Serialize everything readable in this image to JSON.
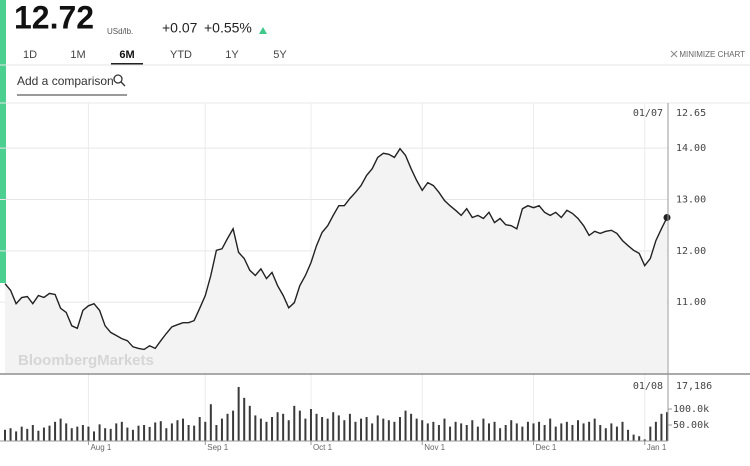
{
  "header": {
    "price": "12.72",
    "unit": "USd/lb.",
    "change": "+0.07",
    "change_pct": "+0.55%"
  },
  "tabs": [
    "1D",
    "1M",
    "6M",
    "YTD",
    "1Y",
    "5Y"
  ],
  "active_tab": 2,
  "minimize": "MINIMIZE CHART",
  "comparison_placeholder": "Add a comparison",
  "watermark": "BloombergMarkets",
  "chart_data": [
    {
      "type": "line",
      "series": [
        {
          "name": "Price",
          "color": "#222222",
          "fill": "#f3f3f3",
          "values": [
            11.36,
            11.23,
            10.97,
            11.09,
            11.11,
            10.97,
            11.13,
            11.09,
            11.17,
            11.15,
            10.88,
            10.8,
            10.54,
            10.49,
            10.84,
            10.93,
            10.97,
            10.84,
            10.54,
            10.41,
            10.35,
            10.29,
            10.25,
            10.13,
            10.1,
            10.08,
            10.15,
            10.1,
            10.25,
            10.39,
            10.52,
            10.56,
            10.6,
            10.6,
            10.64,
            10.88,
            11.13,
            11.52,
            12.01,
            12.04,
            12.24,
            12.43,
            11.97,
            11.85,
            11.62,
            11.52,
            11.65,
            11.46,
            11.58,
            11.32,
            11.13,
            10.89,
            10.99,
            11.32,
            11.52,
            11.77,
            12.1,
            12.36,
            12.49,
            12.69,
            12.88,
            12.88,
            13.02,
            13.14,
            13.27,
            13.47,
            13.6,
            13.82,
            13.9,
            13.88,
            13.82,
            13.99,
            13.86,
            13.6,
            13.37,
            13.18,
            13.33,
            13.27,
            13.14,
            12.98,
            12.88,
            12.79,
            12.69,
            12.82,
            12.65,
            12.69,
            12.63,
            12.75,
            12.55,
            12.63,
            12.51,
            12.49,
            12.43,
            12.82,
            12.88,
            12.84,
            12.88,
            12.75,
            12.69,
            12.75,
            12.65,
            12.79,
            12.73,
            12.63,
            12.49,
            12.3,
            12.38,
            12.34,
            12.38,
            12.4,
            12.34,
            12.2,
            12.1,
            12.01,
            11.95,
            11.71,
            11.85,
            12.2,
            12.43,
            12.65
          ]
        }
      ],
      "ylim": [
        9.62,
        14.88
      ],
      "yticks": [
        {
          "value": 11,
          "label": "11.00"
        },
        {
          "value": 12,
          "label": "12.00"
        },
        {
          "value": 13,
          "label": "13.00"
        },
        {
          "value": 14,
          "label": "14.00"
        }
      ],
      "grid": true,
      "crosshair": {
        "date": "01/07",
        "value": 12.65
      }
    },
    {
      "type": "bar",
      "categories": [
        null,
        null,
        null,
        null,
        null,
        null,
        null,
        null,
        null,
        null,
        null,
        null,
        null,
        null,
        null,
        "Aug 1",
        null,
        null,
        null,
        null,
        null,
        null,
        null,
        null,
        null,
        null,
        null,
        null,
        null,
        null,
        null,
        null,
        null,
        null,
        null,
        null,
        "Sep 1",
        null,
        null,
        null,
        null,
        null,
        null,
        null,
        null,
        null,
        null,
        null,
        null,
        null,
        null,
        null,
        null,
        null,
        null,
        "Oct 1",
        null,
        null,
        null,
        null,
        null,
        null,
        null,
        null,
        null,
        null,
        null,
        null,
        null,
        null,
        null,
        null,
        null,
        null,
        null,
        "Nov 1",
        null,
        null,
        null,
        null,
        null,
        null,
        null,
        null,
        null,
        null,
        null,
        null,
        null,
        null,
        null,
        null,
        null,
        null,
        null,
        "Dec 1",
        null,
        null,
        null,
        null,
        null,
        null,
        null,
        null,
        null,
        null,
        null,
        null,
        null,
        null,
        null,
        null,
        null,
        null,
        null,
        "Jan 1",
        null,
        null,
        null,
        null
      ],
      "values": [
        35000,
        40000,
        30000,
        45000,
        38000,
        50000,
        32000,
        42000,
        48000,
        60000,
        70000,
        55000,
        40000,
        45000,
        50000,
        45000,
        30000,
        52000,
        40000,
        38000,
        55000,
        60000,
        42000,
        35000,
        48000,
        50000,
        44000,
        58000,
        62000,
        40000,
        55000,
        65000,
        70000,
        50000,
        48000,
        75000,
        60000,
        115000,
        50000,
        70000,
        85000,
        95000,
        169000,
        135000,
        110000,
        80000,
        70000,
        60000,
        75000,
        90000,
        85000,
        65000,
        110000,
        95000,
        70000,
        100000,
        85000,
        75000,
        70000,
        90000,
        80000,
        65000,
        85000,
        60000,
        70000,
        75000,
        55000,
        80000,
        70000,
        65000,
        60000,
        75000,
        95000,
        85000,
        70000,
        65000,
        55000,
        60000,
        50000,
        70000,
        45000,
        60000,
        55000,
        50000,
        65000,
        45000,
        70000,
        55000,
        60000,
        40000,
        50000,
        65000,
        55000,
        45000,
        60000,
        55000,
        60000,
        50000,
        70000,
        45000,
        55000,
        60000,
        50000,
        65000,
        55000,
        60000,
        70000,
        50000,
        40000,
        55000,
        45000,
        60000,
        35000,
        20000,
        15000,
        5000,
        45000,
        60000,
        85000,
        90000
      ],
      "color": "#3a3a3a",
      "ylim": [
        0,
        197000
      ],
      "yticks": [
        {
          "value": 50000,
          "label": "50.00k"
        },
        {
          "value": 100000,
          "label": "100.0k"
        }
      ],
      "crosshair": {
        "date": "01/08",
        "value": 17186,
        "value_label": "17,186"
      }
    }
  ]
}
